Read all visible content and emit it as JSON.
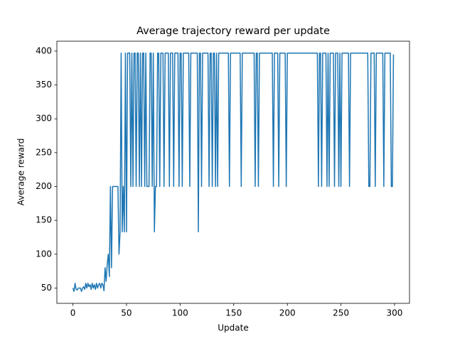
{
  "chart_data": {
    "type": "line",
    "title": "Average trajectory reward per update",
    "x_label": "Update",
    "y_label": "Average reward",
    "color": "#1f77b4",
    "x": [
      0,
      1,
      2,
      3,
      4,
      5,
      6,
      7,
      8,
      9,
      10,
      11,
      12,
      13,
      14,
      15,
      16,
      17,
      18,
      19,
      20,
      21,
      22,
      23,
      24,
      25,
      26,
      27,
      28,
      29,
      30,
      31,
      32,
      33,
      34,
      35,
      36,
      37,
      38,
      39,
      40,
      41,
      42,
      43,
      44,
      45,
      46,
      47,
      48,
      49,
      50,
      51,
      52,
      53,
      54,
      55,
      56,
      57,
      58,
      59,
      60,
      61,
      62,
      63,
      64,
      65,
      66,
      67,
      68,
      69,
      70,
      71,
      72,
      73,
      74,
      75,
      76,
      77,
      78,
      79,
      80,
      81,
      82,
      83,
      84,
      85,
      86,
      87,
      88,
      89,
      90,
      91,
      92,
      93,
      94,
      95,
      96,
      97,
      98,
      99,
      100,
      101,
      102,
      103,
      104,
      105,
      106,
      107,
      108,
      109,
      110,
      111,
      112,
      113,
      114,
      115,
      116,
      117,
      118,
      119,
      120,
      121,
      122,
      123,
      124,
      125,
      126,
      127,
      128,
      129,
      130,
      131,
      132,
      133,
      134,
      135,
      136,
      137,
      138,
      139,
      140,
      141,
      142,
      143,
      144,
      145,
      146,
      147,
      148,
      149,
      150,
      151,
      152,
      153,
      154,
      155,
      156,
      157,
      158,
      159,
      160,
      161,
      162,
      163,
      164,
      165,
      166,
      167,
      168,
      169,
      170,
      171,
      172,
      173,
      174,
      175,
      176,
      177,
      178,
      179,
      180,
      181,
      182,
      183,
      184,
      185,
      186,
      187,
      188,
      189,
      190,
      191,
      192,
      193,
      194,
      195,
      196,
      197,
      198,
      199,
      200,
      201,
      202,
      203,
      204,
      205,
      206,
      207,
      208,
      209,
      210,
      211,
      212,
      213,
      214,
      215,
      216,
      217,
      218,
      219,
      220,
      221,
      222,
      223,
      224,
      225,
      226,
      227,
      228,
      229,
      230,
      231,
      232,
      233,
      234,
      235,
      236,
      237,
      238,
      239,
      240,
      241,
      242,
      243,
      244,
      245,
      246,
      247,
      248,
      249,
      250,
      251,
      252,
      253,
      254,
      255,
      256,
      257,
      258,
      259,
      260,
      261,
      262,
      263,
      264,
      265,
      266,
      267,
      268,
      269,
      270,
      271,
      272,
      273,
      274,
      275,
      276,
      277,
      278,
      279,
      280,
      281,
      282,
      283,
      284,
      285,
      286,
      287,
      288,
      289,
      290,
      291,
      292,
      293,
      294,
      295,
      296,
      297,
      298,
      299
    ],
    "values": [
      50,
      45,
      57,
      48,
      47,
      50,
      50,
      50,
      45,
      50,
      52,
      48,
      57,
      50,
      57,
      52,
      55,
      48,
      57,
      50,
      55,
      48,
      57,
      50,
      55,
      57,
      50,
      57,
      55,
      46,
      80,
      60,
      85,
      100,
      67,
      200,
      80,
      200,
      200,
      200,
      200,
      200,
      200,
      100,
      133,
      397,
      133,
      200,
      133,
      397,
      133,
      397,
      397,
      397,
      200,
      397,
      200,
      397,
      397,
      200,
      397,
      397,
      200,
      397,
      200,
      397,
      397,
      200,
      397,
      200,
      200,
      200,
      397,
      397,
      200,
      397,
      133,
      200,
      200,
      397,
      397,
      200,
      397,
      397,
      397,
      200,
      397,
      397,
      397,
      397,
      200,
      397,
      397,
      397,
      200,
      397,
      397,
      397,
      397,
      200,
      397,
      397,
      200,
      397,
      397,
      397,
      397,
      397,
      397,
      200,
      397,
      397,
      397,
      397,
      397,
      397,
      397,
      133,
      397,
      397,
      200,
      397,
      397,
      397,
      397,
      397,
      397,
      200,
      397,
      397,
      200,
      397,
      397,
      200,
      397,
      200,
      397,
      397,
      397,
      397,
      397,
      397,
      397,
      397,
      397,
      397,
      200,
      397,
      397,
      397,
      397,
      397,
      397,
      397,
      397,
      397,
      397,
      200,
      397,
      397,
      397,
      397,
      397,
      397,
      397,
      397,
      397,
      397,
      397,
      397,
      200,
      397,
      397,
      200,
      397,
      397,
      397,
      397,
      397,
      397,
      397,
      397,
      397,
      397,
      397,
      397,
      397,
      200,
      397,
      397,
      397,
      397,
      200,
      397,
      397,
      397,
      397,
      397,
      397,
      200,
      397,
      397,
      397,
      397,
      397,
      397,
      397,
      397,
      397,
      397,
      397,
      397,
      397,
      397,
      397,
      397,
      397,
      397,
      397,
      397,
      397,
      397,
      397,
      397,
      397,
      397,
      397,
      397,
      397,
      200,
      397,
      397,
      200,
      397,
      397,
      397,
      397,
      200,
      397,
      200,
      397,
      397,
      397,
      397,
      200,
      397,
      397,
      397,
      200,
      397,
      200,
      397,
      397,
      397,
      397,
      397,
      397,
      397,
      200,
      397,
      397,
      397,
      397,
      397,
      397,
      397,
      397,
      397,
      397,
      397,
      397,
      397,
      397,
      397,
      397,
      397,
      200,
      200,
      397,
      397,
      397,
      397,
      200,
      397,
      397,
      397,
      397,
      397,
      397,
      397,
      200,
      397,
      397,
      397,
      397,
      397,
      397,
      200,
      200,
      395
    ],
    "xlim": [
      -14.95,
      313.95
    ],
    "ylim": [
      27.4,
      414.6
    ],
    "xticks": [
      0,
      50,
      100,
      150,
      200,
      250,
      300
    ],
    "yticks": [
      50,
      100,
      150,
      200,
      250,
      300,
      350,
      400
    ]
  }
}
